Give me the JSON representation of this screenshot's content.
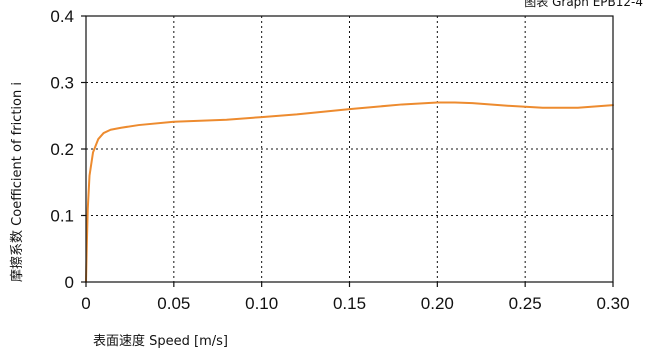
{
  "caption": "图表 Graph EPB12-4",
  "colors": {
    "series": "#ED8B2F",
    "axis": "#111111",
    "background": "#ffffff"
  },
  "chart_data": {
    "type": "line",
    "title": "",
    "xlabel": "表面速度 Speed  [m/s]",
    "ylabel": "摩擦系数 Coefficient of friction i",
    "xlim": [
      0,
      0.3
    ],
    "ylim": [
      0,
      0.4
    ],
    "x_ticks": [
      0,
      0.05,
      0.1,
      0.15,
      0.2,
      0.25,
      0.3
    ],
    "x_tick_labels": [
      "0",
      "0.05",
      "0.10",
      "0.15",
      "0.20",
      "0.25",
      "0.30"
    ],
    "y_ticks": [
      0,
      0.1,
      0.2,
      0.3,
      0.4
    ],
    "y_tick_labels": [
      "0",
      "0.1",
      "0.2",
      "0.3",
      "0.4"
    ],
    "grid": "dotted",
    "series": [
      {
        "color": "#ED8B2F",
        "points": [
          [
            0,
            0
          ],
          [
            0.0005,
            0.06
          ],
          [
            0.001,
            0.11
          ],
          [
            0.002,
            0.16
          ],
          [
            0.004,
            0.195
          ],
          [
            0.007,
            0.215
          ],
          [
            0.01,
            0.224
          ],
          [
            0.014,
            0.229
          ],
          [
            0.02,
            0.232
          ],
          [
            0.03,
            0.236
          ],
          [
            0.05,
            0.241
          ],
          [
            0.08,
            0.244
          ],
          [
            0.1,
            0.248
          ],
          [
            0.12,
            0.252
          ],
          [
            0.15,
            0.26
          ],
          [
            0.18,
            0.267
          ],
          [
            0.2,
            0.27
          ],
          [
            0.21,
            0.27
          ],
          [
            0.22,
            0.269
          ],
          [
            0.24,
            0.265
          ],
          [
            0.26,
            0.262
          ],
          [
            0.28,
            0.262
          ],
          [
            0.3,
            0.266
          ]
        ]
      }
    ]
  }
}
